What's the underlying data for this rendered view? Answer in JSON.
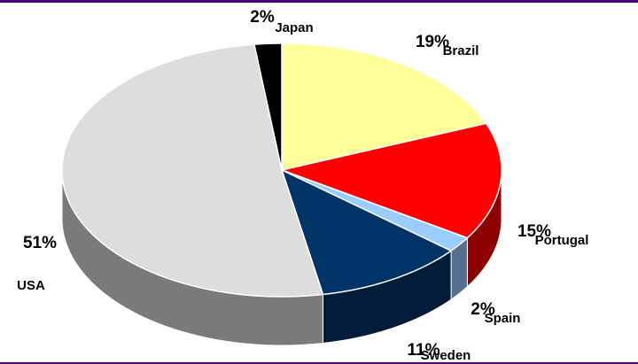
{
  "chart_data": {
    "type": "pie",
    "categories": [
      "Brazil",
      "Portugal",
      "Spain",
      "Sweden",
      "USA",
      "Japan"
    ],
    "values": [
      19,
      15,
      2,
      11,
      51,
      2
    ],
    "value_labels": [
      "19%",
      "15%",
      "2%",
      "11%",
      "51%",
      "2%"
    ],
    "colors": [
      "#ffff99",
      "#ff0000",
      "#99ccff",
      "#003366",
      "#dddddd",
      "#000000"
    ]
  }
}
